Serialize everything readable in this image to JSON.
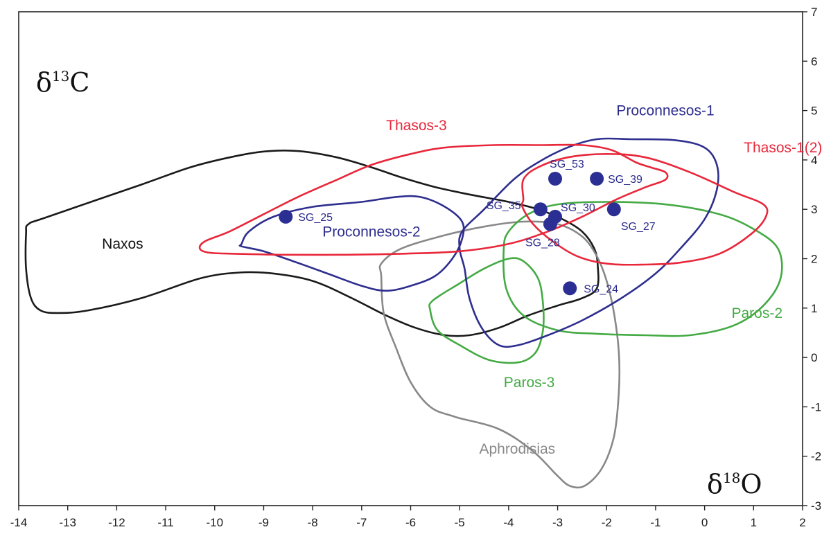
{
  "chart_data": {
    "type": "scatter",
    "title": "",
    "xlabel_symbol": "δ",
    "xlabel_sup": "18",
    "xlabel_element": "O",
    "ylabel_symbol": "δ",
    "ylabel_sup": "13",
    "ylabel_element": "C",
    "xlim": [
      -14,
      2
    ],
    "ylim": [
      -3,
      7
    ],
    "xticks": [
      -14,
      -13,
      -12,
      -11,
      -10,
      -9,
      -8,
      -7,
      -6,
      -5,
      -4,
      -3,
      -2,
      -1,
      0,
      1,
      2
    ],
    "yticks": [
      -3,
      -2,
      -1,
      0,
      1,
      2,
      3,
      4,
      5,
      6,
      7
    ],
    "y_axis_side": "right",
    "grid": false,
    "points": [
      {
        "label": "SG_25",
        "x": -8.55,
        "y": 2.85
      },
      {
        "label": "SG_53",
        "x": -3.05,
        "y": 3.62
      },
      {
        "label": "SG_39",
        "x": -2.2,
        "y": 3.62
      },
      {
        "label": "SG_35",
        "x": -3.35,
        "y": 3.0
      },
      {
        "label": "SG_30",
        "x": -3.05,
        "y": 2.85
      },
      {
        "label": "SG_28",
        "x": -3.15,
        "y": 2.7
      },
      {
        "label": "SG_27",
        "x": -1.85,
        "y": 3.0
      },
      {
        "label": "SG_24",
        "x": -2.75,
        "y": 1.4
      }
    ],
    "fields": [
      {
        "name": "Naxos",
        "color": "#1a1a1a",
        "outline": [
          [
            -13.85,
            2.5
          ],
          [
            -13.8,
            2.7
          ],
          [
            -13.4,
            2.85
          ],
          [
            -11.5,
            3.5
          ],
          [
            -10.5,
            3.85
          ],
          [
            -9.7,
            4.05
          ],
          [
            -9.0,
            4.17
          ],
          [
            -8.3,
            4.18
          ],
          [
            -7.5,
            4.05
          ],
          [
            -6.8,
            3.85
          ],
          [
            -6.2,
            3.65
          ],
          [
            -5.5,
            3.45
          ],
          [
            -4.8,
            3.3
          ],
          [
            -4.0,
            3.15
          ],
          [
            -3.4,
            3.0
          ],
          [
            -2.9,
            2.8
          ],
          [
            -2.5,
            2.55
          ],
          [
            -2.25,
            2.2
          ],
          [
            -2.18,
            1.85
          ],
          [
            -2.2,
            1.4
          ],
          [
            -2.5,
            1.2
          ],
          [
            -3.0,
            1.05
          ],
          [
            -3.6,
            0.85
          ],
          [
            -4.2,
            0.6
          ],
          [
            -4.8,
            0.45
          ],
          [
            -5.3,
            0.45
          ],
          [
            -5.9,
            0.6
          ],
          [
            -6.5,
            0.85
          ],
          [
            -7.2,
            1.2
          ],
          [
            -8.0,
            1.55
          ],
          [
            -8.8,
            1.7
          ],
          [
            -9.5,
            1.72
          ],
          [
            -10.3,
            1.6
          ],
          [
            -11.5,
            1.2
          ],
          [
            -12.6,
            0.95
          ],
          [
            -13.2,
            0.9
          ],
          [
            -13.55,
            0.95
          ],
          [
            -13.75,
            1.2
          ],
          [
            -13.85,
            1.8
          ]
        ],
        "label_x": -12.3,
        "label_y": 2.2
      },
      {
        "name": "Thasos-3",
        "color": "#e8273a",
        "outline": [
          [
            -10.3,
            2.2
          ],
          [
            -10.2,
            2.35
          ],
          [
            -9.7,
            2.55
          ],
          [
            -9.0,
            2.9
          ],
          [
            -8.3,
            3.25
          ],
          [
            -7.5,
            3.6
          ],
          [
            -6.8,
            3.9
          ],
          [
            -6.0,
            4.12
          ],
          [
            -5.3,
            4.25
          ],
          [
            -4.3,
            4.3
          ],
          [
            -3.3,
            4.3
          ],
          [
            -2.5,
            4.3
          ],
          [
            -1.9,
            4.2
          ],
          [
            -1.4,
            3.95
          ],
          [
            -1.1,
            3.85
          ],
          [
            -0.8,
            3.75
          ],
          [
            -0.8,
            3.6
          ],
          [
            -1.2,
            3.45
          ],
          [
            -1.8,
            3.2
          ],
          [
            -2.5,
            2.85
          ],
          [
            -3.2,
            2.55
          ],
          [
            -4.0,
            2.3
          ],
          [
            -5.0,
            2.15
          ],
          [
            -6.2,
            2.1
          ],
          [
            -7.4,
            2.08
          ],
          [
            -8.6,
            2.08
          ],
          [
            -9.6,
            2.1
          ],
          [
            -10.1,
            2.12
          ]
        ],
        "label_x": -6.5,
        "label_y": 4.6
      },
      {
        "name": "Proconnesos-2",
        "color": "#2e2e8f",
        "outline": [
          [
            -9.45,
            2.3
          ],
          [
            -9.3,
            2.55
          ],
          [
            -8.8,
            2.85
          ],
          [
            -8.0,
            3.05
          ],
          [
            -7.0,
            3.15
          ],
          [
            -6.3,
            3.25
          ],
          [
            -5.8,
            3.25
          ],
          [
            -5.3,
            3.05
          ],
          [
            -4.95,
            2.75
          ],
          [
            -4.95,
            2.4
          ],
          [
            -5.15,
            2.0
          ],
          [
            -5.5,
            1.65
          ],
          [
            -6.0,
            1.45
          ],
          [
            -6.5,
            1.35
          ],
          [
            -7.0,
            1.45
          ],
          [
            -7.7,
            1.7
          ],
          [
            -8.4,
            1.95
          ],
          [
            -9.0,
            2.15
          ],
          [
            -9.45,
            2.25
          ]
        ],
        "label_x": -7.8,
        "label_y": 2.45
      },
      {
        "name": "Proconnesos-1",
        "color": "#2e2e8f",
        "outline": [
          [
            -4.95,
            2.55
          ],
          [
            -4.5,
            3.0
          ],
          [
            -3.9,
            3.6
          ],
          [
            -3.4,
            3.95
          ],
          [
            -2.8,
            4.25
          ],
          [
            -2.2,
            4.42
          ],
          [
            -1.5,
            4.42
          ],
          [
            -0.6,
            4.4
          ],
          [
            0.0,
            4.25
          ],
          [
            0.25,
            3.9
          ],
          [
            0.25,
            3.4
          ],
          [
            0.0,
            2.8
          ],
          [
            -0.5,
            2.2
          ],
          [
            -1.0,
            1.7
          ],
          [
            -1.7,
            1.2
          ],
          [
            -2.5,
            0.75
          ],
          [
            -3.2,
            0.45
          ],
          [
            -3.8,
            0.25
          ],
          [
            -4.2,
            0.25
          ],
          [
            -4.55,
            0.6
          ],
          [
            -4.8,
            1.2
          ],
          [
            -4.9,
            1.8
          ],
          [
            -5.0,
            2.2
          ]
        ],
        "label_x": -1.8,
        "label_y": 4.9
      },
      {
        "name": "Thasos-1(2)",
        "color": "#e8273a",
        "outline": [
          [
            -3.7,
            3.2
          ],
          [
            -3.7,
            3.6
          ],
          [
            -3.4,
            3.85
          ],
          [
            -2.8,
            4.05
          ],
          [
            -2.0,
            4.12
          ],
          [
            -1.2,
            4.05
          ],
          [
            -0.3,
            3.75
          ],
          [
            0.6,
            3.35
          ],
          [
            1.2,
            3.1
          ],
          [
            1.25,
            2.85
          ],
          [
            0.95,
            2.5
          ],
          [
            0.3,
            2.1
          ],
          [
            -0.5,
            1.92
          ],
          [
            -1.3,
            1.88
          ],
          [
            -2.0,
            1.9
          ],
          [
            -2.6,
            2.05
          ],
          [
            -3.1,
            2.35
          ],
          [
            -3.5,
            2.7
          ],
          [
            -3.72,
            3.05
          ]
        ],
        "label_x": 0.8,
        "label_y": 4.15
      },
      {
        "name": "Paros-2",
        "color": "#44aa44",
        "outline": [
          [
            -4.1,
            2.2
          ],
          [
            -4.0,
            2.55
          ],
          [
            -3.6,
            2.9
          ],
          [
            -3.0,
            3.1
          ],
          [
            -2.0,
            3.15
          ],
          [
            -0.8,
            3.1
          ],
          [
            0.3,
            2.9
          ],
          [
            1.0,
            2.6
          ],
          [
            1.5,
            2.2
          ],
          [
            1.55,
            1.6
          ],
          [
            1.2,
            1.05
          ],
          [
            0.6,
            0.65
          ],
          [
            -0.3,
            0.45
          ],
          [
            -1.2,
            0.45
          ],
          [
            -2.2,
            0.48
          ],
          [
            -3.0,
            0.55
          ],
          [
            -3.7,
            0.85
          ],
          [
            -4.05,
            1.4
          ]
        ],
        "label_x": 0.55,
        "label_y": 0.8
      },
      {
        "name": "Paros-3",
        "color": "#44aa44",
        "outline": [
          [
            -5.6,
            0.95
          ],
          [
            -5.55,
            1.15
          ],
          [
            -5.0,
            1.5
          ],
          [
            -4.5,
            1.8
          ],
          [
            -4.0,
            2.0
          ],
          [
            -3.7,
            1.95
          ],
          [
            -3.4,
            1.6
          ],
          [
            -3.3,
            1.1
          ],
          [
            -3.3,
            0.55
          ],
          [
            -3.45,
            0.1
          ],
          [
            -3.8,
            -0.1
          ],
          [
            -4.4,
            -0.05
          ],
          [
            -5.0,
            0.25
          ],
          [
            -5.45,
            0.55
          ]
        ],
        "label_x": -4.1,
        "label_y": -0.6
      },
      {
        "name": "Aphrodisias",
        "color": "#888888",
        "outline": [
          [
            -6.6,
            1.65
          ],
          [
            -6.6,
            1.9
          ],
          [
            -6.2,
            2.2
          ],
          [
            -5.4,
            2.45
          ],
          [
            -4.5,
            2.65
          ],
          [
            -3.7,
            2.75
          ],
          [
            -3.0,
            2.7
          ],
          [
            -2.5,
            2.45
          ],
          [
            -2.2,
            2.05
          ],
          [
            -2.0,
            1.55
          ],
          [
            -1.85,
            0.9
          ],
          [
            -1.75,
            0.1
          ],
          [
            -1.75,
            -0.7
          ],
          [
            -1.85,
            -1.6
          ],
          [
            -2.1,
            -2.25
          ],
          [
            -2.45,
            -2.6
          ],
          [
            -2.75,
            -2.6
          ],
          [
            -3.0,
            -2.4
          ],
          [
            -3.5,
            -1.9
          ],
          [
            -4.2,
            -1.45
          ],
          [
            -5.1,
            -1.2
          ],
          [
            -5.6,
            -1.0
          ],
          [
            -6.0,
            -0.5
          ],
          [
            -6.3,
            0.2
          ],
          [
            -6.55,
            0.9
          ]
        ],
        "label_x": -4.6,
        "label_y": -1.95
      }
    ]
  }
}
